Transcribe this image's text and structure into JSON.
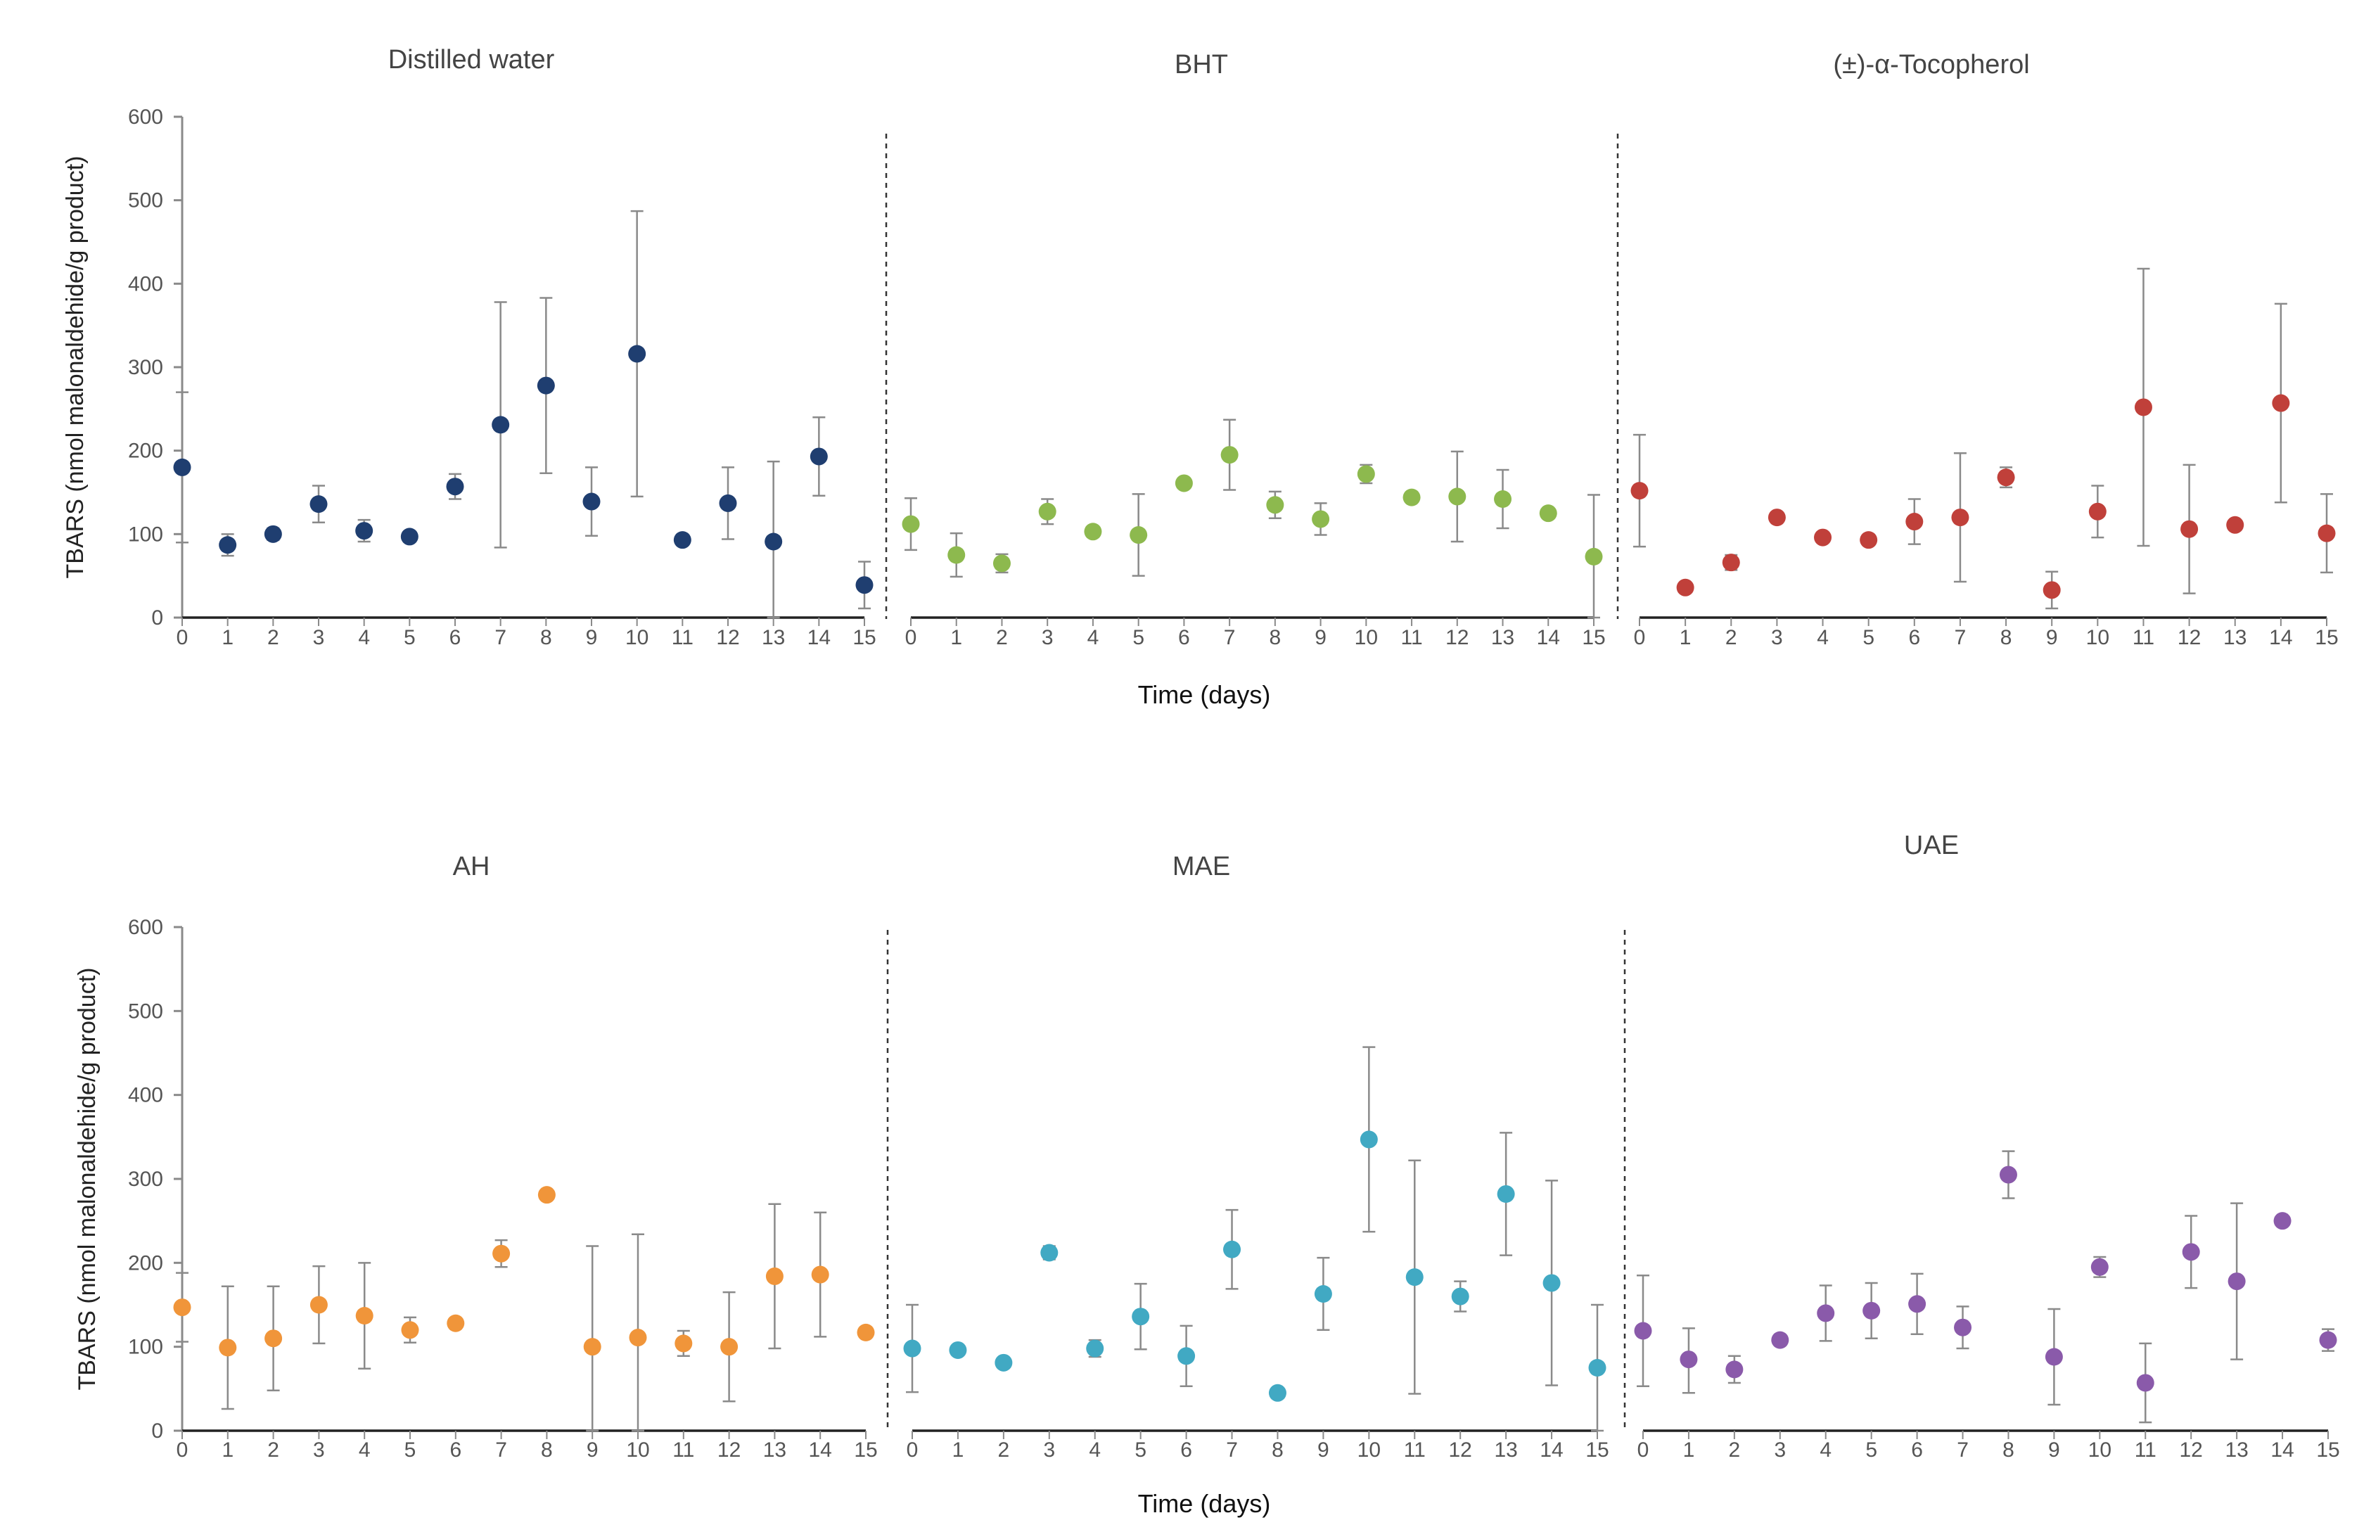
{
  "chart_data": [
    {
      "row": "top",
      "type": "scatter",
      "ylabel": "TBARS (nmol malonaldehide/g  product)",
      "xlabel": "Time (days)",
      "ylim": [
        0,
        600
      ],
      "yticks": [
        0,
        100,
        200,
        300,
        400,
        500,
        600
      ],
      "x": [
        0,
        1,
        2,
        3,
        4,
        5,
        6,
        7,
        8,
        9,
        10,
        11,
        12,
        13,
        14,
        15
      ],
      "panels": [
        {
          "title": "Distilled water",
          "color": "#1f3e70",
          "values": [
            180,
            87,
            100,
            136,
            104,
            97,
            157,
            231,
            278,
            139,
            316,
            93,
            137,
            91,
            193,
            39
          ],
          "err_high": [
            270,
            100,
            107,
            158,
            117,
            100,
            172,
            378,
            383,
            180,
            487,
            96,
            180,
            187,
            240,
            67
          ],
          "err_low": [
            90,
            74,
            93,
            114,
            91,
            94,
            142,
            84,
            173,
            98,
            145,
            90,
            94,
            0,
            146,
            11
          ]
        },
        {
          "title": "BHT",
          "color": "#8db94e",
          "values": [
            112,
            75,
            65,
            127,
            103,
            99,
            161,
            195,
            135,
            118,
            172,
            144,
            145,
            142,
            125,
            73
          ],
          "err_high": [
            143,
            101,
            76,
            142,
            106,
            148,
            164,
            237,
            151,
            137,
            183,
            150,
            199,
            177,
            128,
            147
          ],
          "err_low": [
            81,
            49,
            54,
            112,
            100,
            50,
            158,
            153,
            119,
            99,
            161,
            138,
            91,
            107,
            122,
            0
          ]
        },
        {
          "title": "(±)-α-Tocopherol",
          "color": "#c0403a",
          "values": [
            152,
            36,
            66,
            120,
            96,
            93,
            115,
            120,
            168,
            33,
            127,
            252,
            106,
            111,
            257,
            101
          ],
          "err_high": [
            219,
            38,
            75,
            123,
            99,
            96,
            142,
            197,
            180,
            55,
            158,
            418,
            183,
            114,
            376,
            148
          ],
          "err_low": [
            85,
            34,
            57,
            117,
            93,
            90,
            88,
            43,
            156,
            11,
            96,
            86,
            29,
            108,
            138,
            54
          ]
        }
      ]
    },
    {
      "row": "bottom",
      "type": "scatter",
      "ylabel": "TBARS (nmol malonaldehide/g product)",
      "xlabel": "Time (days)",
      "ylim": [
        0,
        600
      ],
      "yticks": [
        0,
        100,
        200,
        300,
        400,
        500,
        600
      ],
      "x": [
        0,
        1,
        2,
        3,
        4,
        5,
        6,
        7,
        8,
        9,
        10,
        11,
        12,
        13,
        14,
        15
      ],
      "panels": [
        {
          "title": "AH",
          "color": "#f0953a",
          "values": [
            147,
            99,
            110,
            150,
            137,
            120,
            128,
            211,
            281,
            100,
            111,
            104,
            100,
            184,
            186,
            117
          ],
          "err_high": [
            188,
            172,
            172,
            196,
            200,
            135,
            132,
            227,
            284,
            220,
            234,
            119,
            165,
            270,
            260,
            120
          ],
          "err_low": [
            106,
            26,
            48,
            104,
            74,
            105,
            124,
            195,
            278,
            0,
            0,
            89,
            35,
            98,
            112,
            114
          ]
        },
        {
          "title": "MAE",
          "color": "#41a9c3",
          "values": [
            98,
            96,
            81,
            212,
            98,
            136,
            89,
            216,
            45,
            163,
            347,
            183,
            160,
            282,
            176,
            75
          ],
          "err_high": [
            150,
            99,
            84,
            220,
            108,
            175,
            125,
            263,
            48,
            206,
            457,
            322,
            178,
            355,
            298,
            150
          ],
          "err_low": [
            46,
            93,
            78,
            204,
            88,
            97,
            53,
            169,
            42,
            120,
            237,
            44,
            142,
            209,
            54,
            0
          ]
        },
        {
          "title": "UAE",
          "color": "#8a5aaa",
          "values": [
            119,
            85,
            73,
            108,
            140,
            143,
            151,
            123,
            305,
            88,
            195,
            57,
            213,
            178,
            250,
            108
          ],
          "err_high": [
            185,
            122,
            89,
            111,
            173,
            176,
            187,
            148,
            333,
            145,
            207,
            104,
            256,
            271,
            253,
            121
          ],
          "err_low": [
            53,
            45,
            57,
            105,
            107,
            110,
            115,
            98,
            277,
            31,
            183,
            10,
            170,
            85,
            247,
            95
          ]
        }
      ]
    }
  ]
}
